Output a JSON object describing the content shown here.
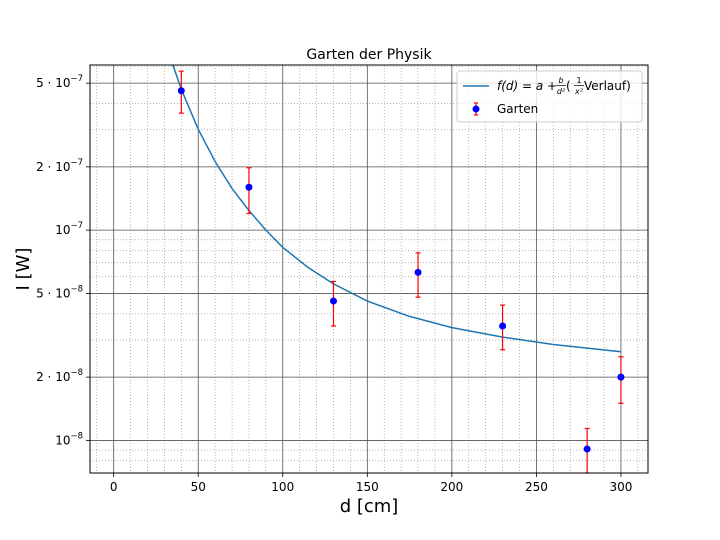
{
  "chart_data": {
    "type": "scatter",
    "title": "Garten der Physik",
    "xlabel": "d [cm]",
    "ylabel": "I [W]",
    "xlim": [
      -14,
      316
    ],
    "ylim": [
      7e-09,
      6.1e-07
    ],
    "yscale": "log",
    "grid": true,
    "legend_position": "top-right",
    "x_ticks": [
      {
        "value": 0,
        "label": "0"
      },
      {
        "value": 50,
        "label": "50"
      },
      {
        "value": 100,
        "label": "100"
      },
      {
        "value": 150,
        "label": "150"
      },
      {
        "value": 200,
        "label": "200"
      },
      {
        "value": 250,
        "label": "250"
      },
      {
        "value": 300,
        "label": "300"
      }
    ],
    "y_ticks": [
      {
        "value": 1e-08,
        "mantissa": "10",
        "exponent": "−8"
      },
      {
        "value": 2e-08,
        "mantissa": "2 · 10",
        "exponent": "−8"
      },
      {
        "value": 5e-08,
        "mantissa": "5 · 10",
        "exponent": "−8"
      },
      {
        "value": 1e-07,
        "mantissa": "10",
        "exponent": "−7"
      },
      {
        "value": 2e-07,
        "mantissa": "2 · 10",
        "exponent": "−7"
      },
      {
        "value": 5e-07,
        "mantissa": "5 · 10",
        "exponent": "−7"
      }
    ],
    "fit": {
      "x_range": [
        32,
        300
      ],
      "color": "#1f77b4",
      "points": [
        {
          "x": 35,
          "y": 6.1e-07
        },
        {
          "x": 40,
          "y": 4.68e-07
        },
        {
          "x": 50,
          "y": 3.02e-07
        },
        {
          "x": 60,
          "y": 2.12e-07
        },
        {
          "x": 70,
          "y": 1.58e-07
        },
        {
          "x": 80,
          "y": 1.24e-07
        },
        {
          "x": 90,
          "y": 1e-07
        },
        {
          "x": 100,
          "y": 8.28e-08
        },
        {
          "x": 115,
          "y": 6.64e-08
        },
        {
          "x": 130,
          "y": 5.55e-08
        },
        {
          "x": 150,
          "y": 4.6e-08
        },
        {
          "x": 175,
          "y": 3.89e-08
        },
        {
          "x": 200,
          "y": 3.44e-08
        },
        {
          "x": 230,
          "y": 3.1e-08
        },
        {
          "x": 260,
          "y": 2.86e-08
        },
        {
          "x": 300,
          "y": 2.64e-08
        }
      ]
    },
    "series": [
      {
        "name": "Garten",
        "color": "#0000ff",
        "errorbar_color": "#ff0000",
        "points": [
          {
            "x": 40,
            "y": 4.6e-07,
            "yerr_low": 3.6e-07,
            "yerr_high": 5.7e-07
          },
          {
            "x": 80,
            "y": 1.6e-07,
            "yerr_low": 1.2e-07,
            "yerr_high": 1.98e-07
          },
          {
            "x": 130,
            "y": 4.6e-08,
            "yerr_low": 3.5e-08,
            "yerr_high": 5.7e-08
          },
          {
            "x": 180,
            "y": 6.3e-08,
            "yerr_low": 4.8e-08,
            "yerr_high": 7.8e-08
          },
          {
            "x": 230,
            "y": 3.5e-08,
            "yerr_low": 2.7e-08,
            "yerr_high": 4.4e-08
          },
          {
            "x": 280,
            "y": 9.1e-09,
            "yerr_low": 7e-09,
            "yerr_high": 1.14e-08
          },
          {
            "x": 300,
            "y": 2e-08,
            "yerr_low": 1.5e-08,
            "yerr_high": 2.5e-08
          }
        ]
      }
    ],
    "legend": {
      "fit_label_lhs": "f(d) = a + ",
      "fit_frac1_num": "b",
      "fit_frac1_den": "d²",
      "fit_paren_open": " (",
      "fit_frac2_num": "1",
      "fit_frac2_den": "x²",
      "fit_label_rhs": " Verlauf)",
      "series_label": "Garten"
    }
  }
}
